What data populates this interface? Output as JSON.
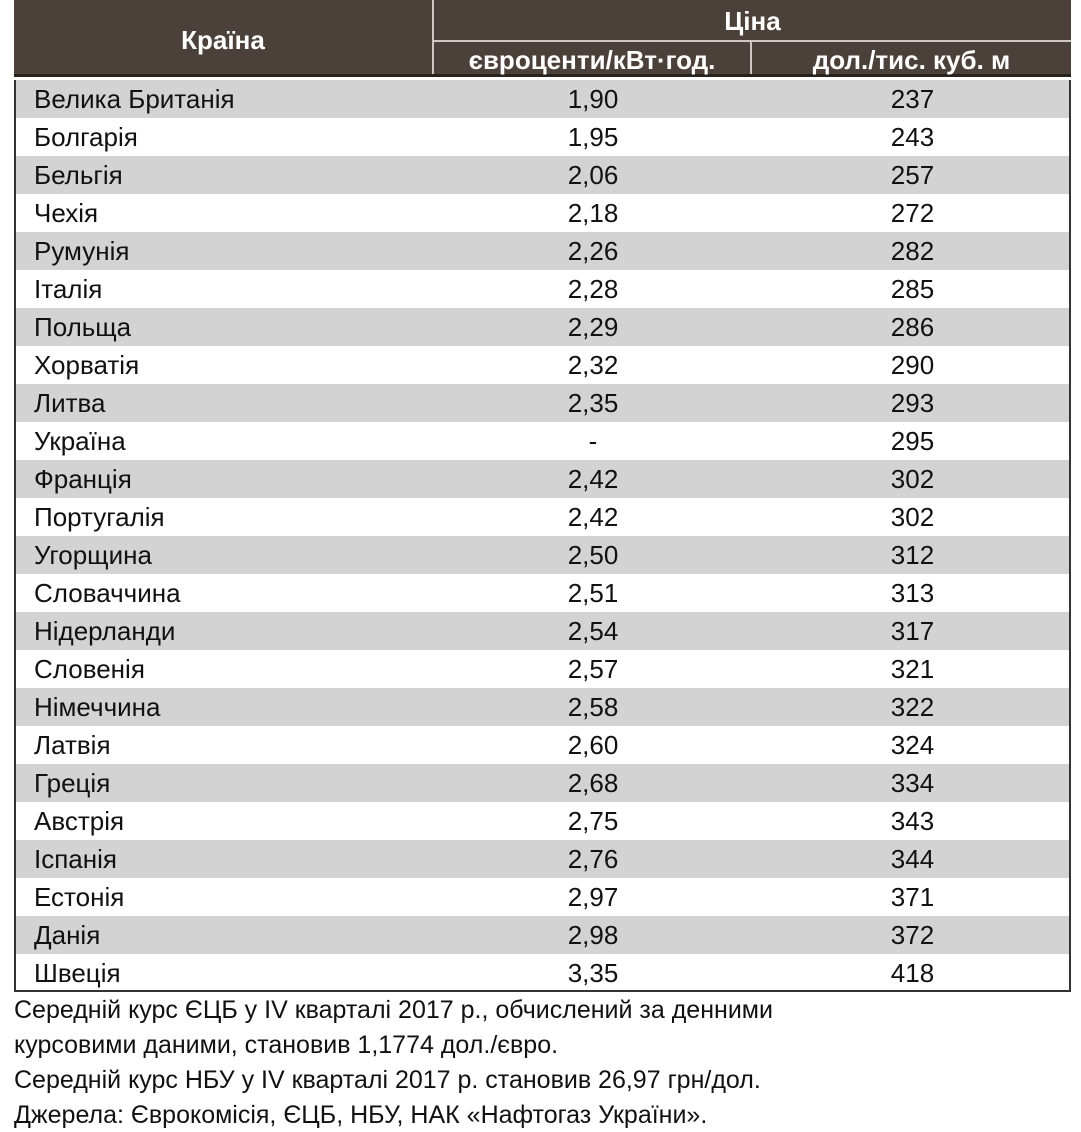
{
  "header": {
    "country": "Країна",
    "price": "Ціна",
    "col1": "євроценти/кВт·год.",
    "col2": "дол./тис. куб. м"
  },
  "rows": [
    [
      "Велика Британія",
      "1,90",
      "237"
    ],
    [
      "Болгарія",
      "1,95",
      "243"
    ],
    [
      "Бельгія",
      "2,06",
      "257"
    ],
    [
      "Чехія",
      "2,18",
      "272"
    ],
    [
      "Румунія",
      "2,26",
      "282"
    ],
    [
      "Італія",
      "2,28",
      "285"
    ],
    [
      "Польща",
      "2,29",
      "286"
    ],
    [
      "Хорватія",
      "2,32",
      "290"
    ],
    [
      "Литва",
      "2,35",
      "293"
    ],
    [
      "Україна",
      "-",
      "295"
    ],
    [
      "Франція",
      "2,42",
      "302"
    ],
    [
      "Португалія",
      "2,42",
      "302"
    ],
    [
      "Угорщина",
      "2,50",
      "312"
    ],
    [
      "Словаччина",
      "2,51",
      "313"
    ],
    [
      "Нідерланди",
      "2,54",
      "317"
    ],
    [
      "Словенія",
      "2,57",
      "321"
    ],
    [
      "Німеччина",
      "2,58",
      "322"
    ],
    [
      "Латвія",
      "2,60",
      "324"
    ],
    [
      "Греція",
      "2,68",
      "334"
    ],
    [
      "Австрія",
      "2,75",
      "343"
    ],
    [
      "Іспанія",
      "2,76",
      "344"
    ],
    [
      "Естонія",
      "2,97",
      "371"
    ],
    [
      "Данія",
      "2,98",
      "372"
    ],
    [
      "Швеція",
      "3,35",
      "418"
    ]
  ],
  "notes": [
    "Середній курс ЄЦБ у IV кварталі 2017 р., обчислений за денними",
    "курсовими даними, становив 1,1774 дол./євро.",
    "Середній курс НБУ у IV кварталі 2017 р. становив 26,97 грн/дол.",
    "Джерела: Єврокомісія, ЄЦБ, НБУ, НАК «Нафтогаз України»."
  ]
}
